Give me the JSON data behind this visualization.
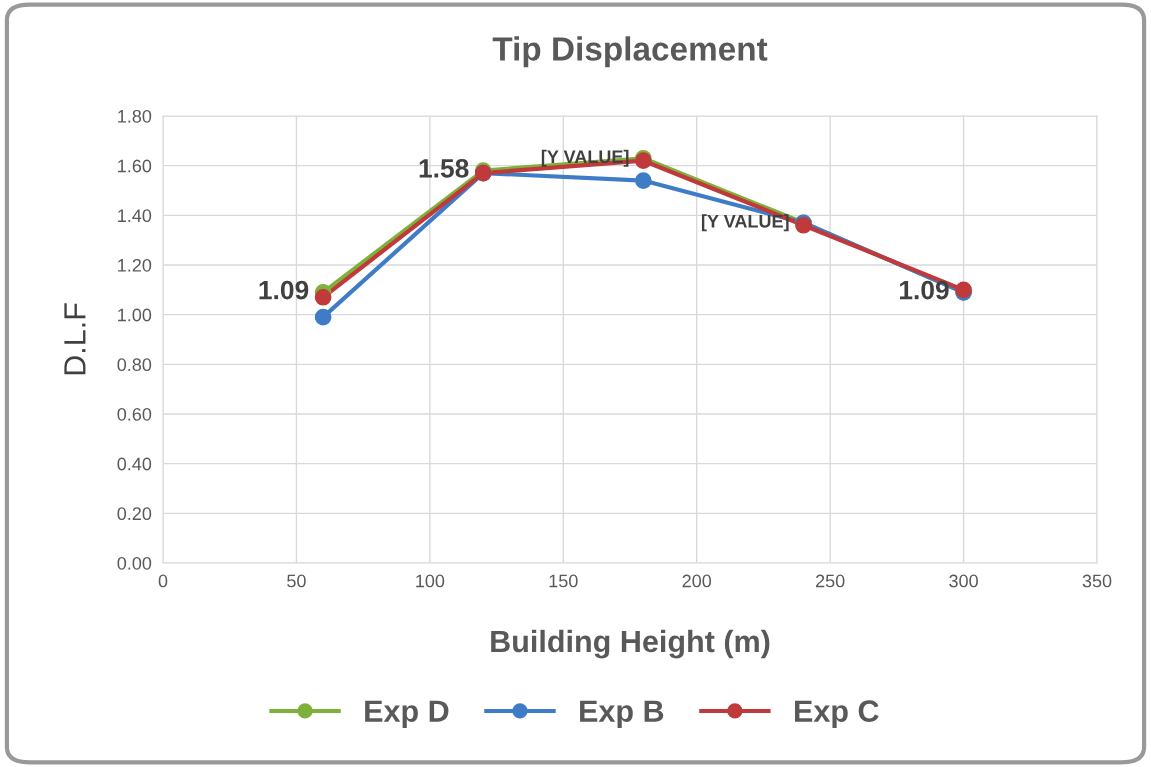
{
  "chart_data": {
    "type": "line",
    "title": "Tip Displacement",
    "xlabel": "Building Height (m)",
    "ylabel": "D.L.F",
    "x": [
      60,
      120,
      180,
      240,
      300
    ],
    "series": [
      {
        "name": "Exp D",
        "color": "#7fb13a",
        "values": [
          1.09,
          1.58,
          1.63,
          1.37,
          1.09
        ],
        "value_labels": [
          "1.09",
          "1.58",
          "[Y VALUE]",
          "[Y VALUE]",
          "1.09"
        ]
      },
      {
        "name": "Exp B",
        "color": "#3f7cc8",
        "values": [
          0.99,
          1.57,
          1.54,
          1.37,
          1.09
        ]
      },
      {
        "name": "Exp C",
        "color": "#c0393b",
        "values": [
          1.07,
          1.57,
          1.62,
          1.36,
          1.1
        ]
      }
    ],
    "xlim": [
      0,
      350
    ],
    "xticks": [
      0,
      50,
      100,
      150,
      200,
      250,
      300,
      350
    ],
    "ylim": [
      0,
      1.8
    ],
    "yticks": [
      {
        "value": 0,
        "label": "0.00"
      },
      {
        "value": 0.2,
        "label": "0.20"
      },
      {
        "value": 0.4,
        "label": "0.40"
      },
      {
        "value": 0.6,
        "label": "0.60"
      },
      {
        "value": 0.8,
        "label": "0.80"
      },
      {
        "value": 1.0,
        "label": "1.00"
      },
      {
        "value": 1.2,
        "label": "1.20"
      },
      {
        "value": 1.4,
        "label": "1.40"
      },
      {
        "value": 1.6,
        "label": "1.60"
      },
      {
        "value": 1.8,
        "label": "1.80"
      }
    ],
    "grid": true,
    "legend": "bottom",
    "marker": "circle",
    "line_style": "solid"
  }
}
